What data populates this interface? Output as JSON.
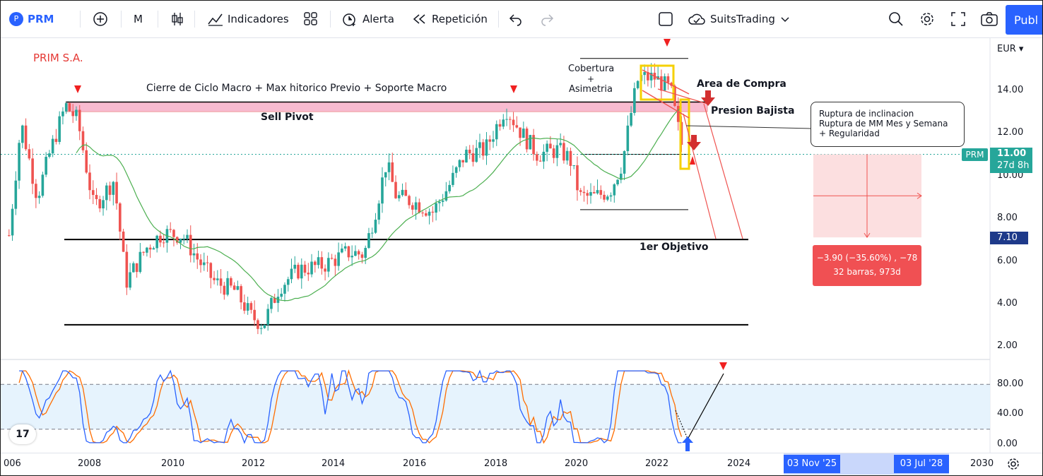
{
  "toolbar": {
    "symbol": "PRM",
    "interval": "M",
    "indicators": "Indicadores",
    "alert": "Alerta",
    "replay": "Repetición",
    "layout": "SuitsTrading",
    "publish": "Publ"
  },
  "chart": {
    "company": "PRIM S.A.",
    "currency": "EUR",
    "annotations": {
      "cycle_close": "Cierre de Ciclo Macro + Max hitorico Previo + Soporte Macro",
      "sell_pivot": "Sell Pivot",
      "coverage_1": "Cobertura",
      "plus": "+",
      "coverage_2": "Asimetria",
      "buy_area": "Area de Compra",
      "bear_pressure": "Presion Bajista",
      "breakout_1": "Ruptura de inclinacion",
      "breakout_2": "Ruptura de MM Mes y Semana",
      "breakout_3": "+ Regularidad",
      "first_target": "1er Objetivo"
    },
    "price_label": "PRM",
    "price_tag": "11.00",
    "countdown": "27d 8h",
    "target_tag": "7.10",
    "measure_1": "−3.90 (−35.60%) , −78",
    "measure_2": "32 barras, 973d",
    "date_tag_1": "03 Nov '25",
    "date_tag_2": "03 Jul '28",
    "colors": {
      "up": "#26a69a",
      "down": "#ef5350",
      "ma": "#4caf50",
      "stoch_k": "#2962ff",
      "stoch_d": "#ff6d00",
      "tag": "#2196f3",
      "pivot": "#f8bbd0"
    }
  },
  "price_axis": [
    "14.00",
    "12.00",
    "10.00",
    "8.00",
    "6.00",
    "4.00",
    "2.00"
  ],
  "stoch_axis": [
    "80.00",
    "40.00",
    "0.00"
  ],
  "time_axis": [
    "006",
    "2008",
    "2010",
    "2012",
    "2014",
    "2016",
    "2018",
    "2020",
    "2022",
    "2024",
    "2030"
  ]
}
